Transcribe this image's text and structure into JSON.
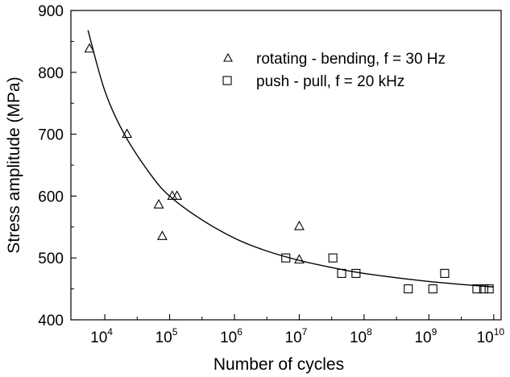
{
  "chart_data": {
    "type": "scatter",
    "xlabel": "Number of cycles",
    "ylabel": "Stress amplitude (MPa)",
    "x_scale": "log",
    "xlim": [
      3000,
      13000000000
    ],
    "ylim": [
      400,
      900
    ],
    "x_ticks": [
      {
        "value": 10000,
        "base": "10",
        "exp": "4"
      },
      {
        "value": 100000,
        "base": "10",
        "exp": "5"
      },
      {
        "value": 1000000,
        "base": "10",
        "exp": "6"
      },
      {
        "value": 10000000,
        "base": "10",
        "exp": "7"
      },
      {
        "value": 100000000,
        "base": "10",
        "exp": "8"
      },
      {
        "value": 1000000000,
        "base": "10",
        "exp": "9"
      },
      {
        "value": 10000000000,
        "base": "10",
        "exp": "10"
      }
    ],
    "y_ticks": [
      "400",
      "500",
      "600",
      "700",
      "800",
      "900"
    ],
    "grid": false,
    "legend_position": "top-right",
    "series": [
      {
        "name": "rotating - bending, f = 30 Hz",
        "marker": "triangle",
        "points": [
          {
            "x": 5800,
            "y": 838
          },
          {
            "x": 22000,
            "y": 700
          },
          {
            "x": 68000,
            "y": 586
          },
          {
            "x": 77000,
            "y": 535
          },
          {
            "x": 110000,
            "y": 600
          },
          {
            "x": 130000,
            "y": 600
          },
          {
            "x": 10000000,
            "y": 551
          },
          {
            "x": 10000000,
            "y": 497
          }
        ]
      },
      {
        "name": "push - pull, f = 20 kHz",
        "marker": "square",
        "points": [
          {
            "x": 6200000,
            "y": 500
          },
          {
            "x": 33000000,
            "y": 500
          },
          {
            "x": 45000000,
            "y": 475
          },
          {
            "x": 75000000,
            "y": 475
          },
          {
            "x": 480000000,
            "y": 450
          },
          {
            "x": 1150000000,
            "y": 450
          },
          {
            "x": 1750000000,
            "y": 475
          },
          {
            "x": 5500000000,
            "y": 450
          },
          {
            "x": 7000000000,
            "y": 450
          },
          {
            "x": 8500000000,
            "y": 450
          }
        ]
      }
    ],
    "fit_curve": {
      "points": [
        {
          "x": 5500,
          "y": 868
        },
        {
          "x": 10000,
          "y": 770
        },
        {
          "x": 20000,
          "y": 700
        },
        {
          "x": 50000,
          "y": 636
        },
        {
          "x": 100000,
          "y": 600
        },
        {
          "x": 300000,
          "y": 563
        },
        {
          "x": 1000000,
          "y": 532
        },
        {
          "x": 3000000,
          "y": 512
        },
        {
          "x": 10000000,
          "y": 496
        },
        {
          "x": 30000000,
          "y": 485
        },
        {
          "x": 100000000,
          "y": 475
        },
        {
          "x": 1000000000,
          "y": 462
        },
        {
          "x": 10000000000,
          "y": 453
        }
      ]
    }
  }
}
